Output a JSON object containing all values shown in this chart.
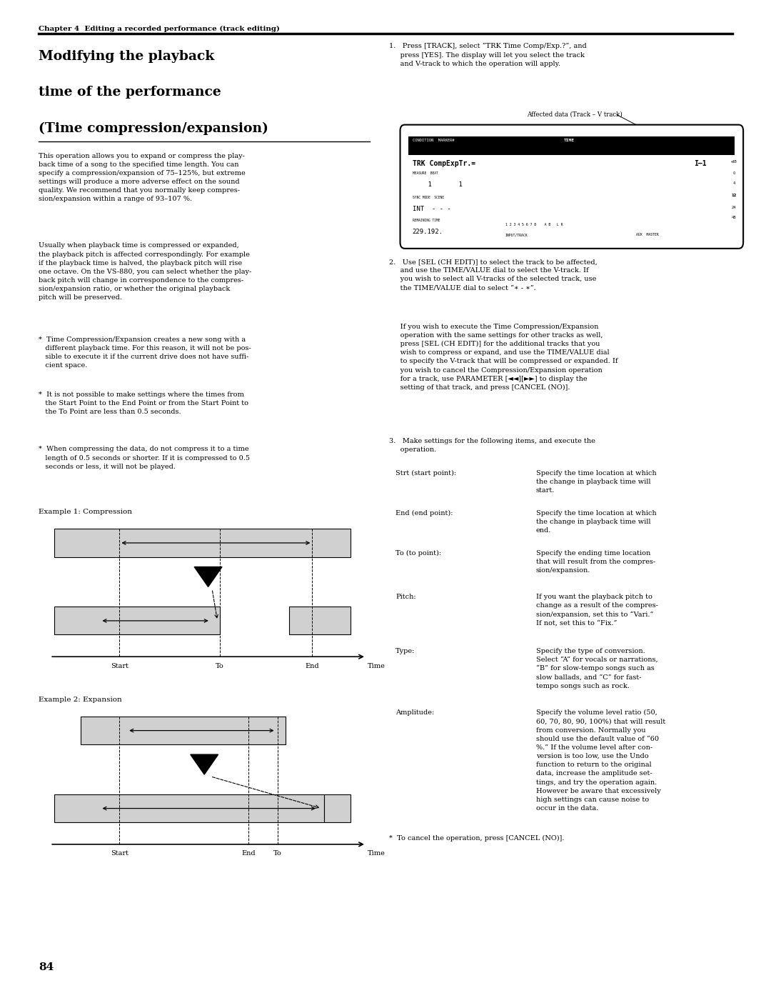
{
  "page_width": 10.8,
  "page_height": 13.97,
  "bg_color": "#ffffff",
  "chapter_header": "Chapter 4  Editing a recorded performance (track editing)",
  "title_line1": "Modifying the playback",
  "title_line2": "time of the performance",
  "title_line3": "(Time compression/expansion)",
  "body_text_col1": [
    "This operation allows you to expand or compress the play-\nback time of a song to the specified time length. You can\nspecify a compression/expansion of 75–125%, but extreme\nsettings will produce a more adverse effect on the sound\nquality. We recommend that you normally keep compres-\nsion/expansion within a range of 93–107 %.",
    "Usually when playback time is compressed or expanded,\nthe playback pitch is affected correspondingly. For example\nif the playback time is halved, the playback pitch will rise\none octave. On the VS-880, you can select whether the play-\nback pitch will change in correspondence to the compres-\nsion/expansion ratio, or whether the original playback\npitch will be preserved.",
    "*  Time Compression/Expansion creates a new song with a\n   different playback time. For this reason, it will not be pos-\n   sible to execute it if the current drive does not have suffi-\n   cient space.",
    "*  It is not possible to make settings where the times from\n   the Start Point to the End Point or from the Start Point to\n   the To Point are less than 0.5 seconds.",
    "*  When compressing the data, do not compress it to a time\n   length of 0.5 seconds or shorter. If it is compressed to 0.5\n   seconds or less, it will not be played."
  ],
  "example1_label": "Example 1: Compression",
  "example2_label": "Example 2: Expansion",
  "body_text_col2_item1": "1.   Press [TRACK], select “TRK Time Comp/Exp.?”, and\n     press [YES]. The display will let you select the track\n     and V-track to which the operation will apply.",
  "affected_data_label": "Affected data (Track – V track)",
  "body_text_col2_item2": "2.   Use [SEL (CH EDIT)] to select the track to be affected,\n     and use the TIME/VALUE dial to select the V-track. If\n     you wish to select all V-tracks of the selected track, use\n     the TIME/VALUE dial to select “∗ - ∗”.",
  "body_text_col2_item2b": "     If you wish to execute the Time Compression/Expansion\n     operation with the same settings for other tracks as well,\n     press [SEL (CH EDIT)] for the additional tracks that you\n     wish to compress or expand, and use the TIME/VALUE dial\n     to specify the V-track that will be compressed or expanded. If\n     you wish to cancel the Compression/Expansion operation\n     for a track, use PARAMETER [◄◄][►►] to display the\n     setting of that track, and press [CANCEL (NO)].",
  "body_text_col2_item3_header": "3.   Make settings for the following items, and execute the\n     operation.",
  "body_text_col2_item3_items": [
    [
      "Strt (start point):",
      "Specify the time location at which\nthe change in playback time will\nstart."
    ],
    [
      "End (end point):",
      "Specify the time location at which\nthe change in playback time will\nend."
    ],
    [
      "To (to point):",
      "Specify the ending time location\nthat will result from the compres-\nsion/expansion."
    ],
    [
      "Pitch:",
      "If you want the playback pitch to\nchange as a result of the compres-\nsion/expansion, set this to “Vari.”\nIf not, set this to “Fix.”"
    ],
    [
      "Type:",
      "Specify the type of conversion.\nSelect “A” for vocals or narrations,\n“B” for slow-tempo songs such as\nslow ballads, and “C” for fast-\ntempo songs such as rock."
    ],
    [
      "Amplitude:",
      "Specify the volume level ratio (50,\n60, 70, 80, 90, 100%) that will result\nfrom conversion. Normally you\nshould use the default value of “60\n%.” If the volume level after con-\nversion is too low, use the Undo\nfunction to return to the original\ndata, increase the amplitude set-\ntings, and try the operation again.\nHowever be aware that excessively\nhigh settings can cause noise to\noccur in the data."
    ]
  ],
  "footer_note": "*  To cancel the operation, press [CANCEL (NO)].",
  "page_number": "84"
}
